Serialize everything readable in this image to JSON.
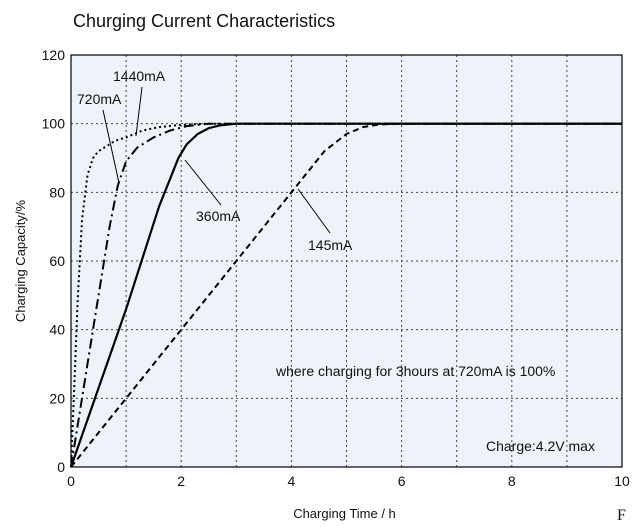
{
  "chart_data": {
    "type": "line",
    "title": "Churging Current Characteristics",
    "xlabel": "Charging Time / h",
    "ylabel": "Charging Capacity/%",
    "xlim": [
      0,
      10
    ],
    "ylim": [
      0,
      120
    ],
    "xticks": [
      0,
      2,
      4,
      6,
      8,
      10
    ],
    "yticks": [
      0,
      20,
      40,
      60,
      80,
      100,
      120
    ],
    "grid": true,
    "background": "#edf3f9",
    "series": [
      {
        "name": "1440mA",
        "style": "dotted",
        "x": [
          0,
          0.05,
          0.12,
          0.2,
          0.3,
          0.4,
          0.5,
          0.65,
          0.8,
          1.0,
          1.3,
          1.6,
          2.0,
          2.5,
          10
        ],
        "y": [
          0,
          20,
          48,
          72,
          85,
          90,
          92,
          93.5,
          95,
          96,
          98,
          99,
          99.7,
          100,
          100
        ]
      },
      {
        "name": "720mA",
        "style": "dashdot",
        "x": [
          0,
          0.4,
          0.7,
          0.85,
          1.0,
          1.2,
          1.5,
          1.8,
          2.1,
          2.5,
          3.0,
          10
        ],
        "y": [
          0,
          40,
          70,
          82,
          89,
          93,
          96,
          98,
          99.3,
          100,
          100,
          100
        ]
      },
      {
        "name": "360mA",
        "style": "solid",
        "x": [
          0,
          1.0,
          1.6,
          1.8,
          1.95,
          2.1,
          2.3,
          2.5,
          2.7,
          3.0,
          3.5,
          10
        ],
        "y": [
          0,
          46,
          76,
          84,
          90,
          94,
          97,
          98.7,
          99.5,
          100,
          100,
          100
        ]
      },
      {
        "name": "145mA",
        "style": "dashed",
        "x": [
          0,
          4.6,
          5.0,
          5.3,
          5.6,
          6.0,
          10
        ],
        "y": [
          0,
          92,
          97,
          99,
          99.8,
          100,
          100
        ]
      }
    ],
    "annotations": {
      "series_labels": [
        "1440mA",
        "720mA",
        "360mA",
        "145mA"
      ],
      "note": "where charging for 3hours at 720mA is 100%",
      "charge_note": "Charge:4.2V max",
      "corner_text": "F"
    }
  }
}
